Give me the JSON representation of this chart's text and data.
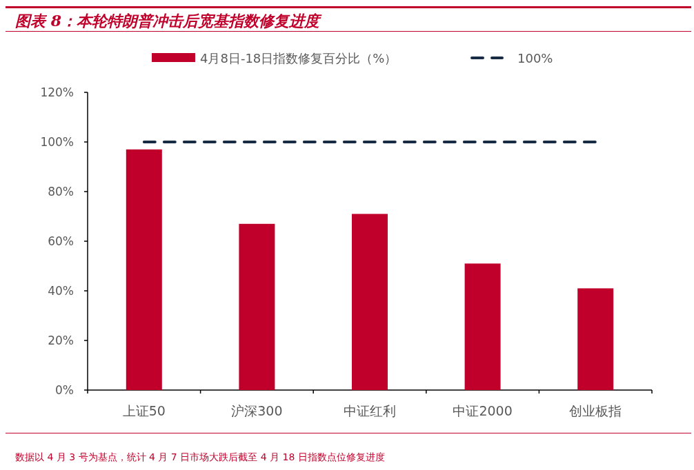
{
  "chart_data": {
    "type": "bar",
    "title": "图表 8：本轮特朗普冲击后宽基指数修复进度",
    "categories": [
      "上证50",
      "沪深300",
      "中证红利",
      "中证2000",
      "创业板指"
    ],
    "series": [
      {
        "name": "4月8日-18日指数修复百分比（%）",
        "color": "#c0002a",
        "values": [
          97,
          67,
          71,
          51,
          41
        ]
      },
      {
        "name": "100%",
        "type": "line",
        "line_style": "dashed",
        "color": "#172b44",
        "values": [
          100,
          100,
          100,
          100,
          100
        ]
      }
    ],
    "ylim": [
      0,
      120
    ],
    "yticks": [
      {
        "value": 0,
        "label": "0%"
      },
      {
        "value": 20,
        "label": "20%"
      },
      {
        "value": 40,
        "label": "40%"
      },
      {
        "value": 60,
        "label": "60%"
      },
      {
        "value": 80,
        "label": "80%"
      },
      {
        "value": 100,
        "label": "100%"
      },
      {
        "value": 120,
        "label": "120%"
      }
    ],
    "legend": "top",
    "annotations": [
      "数据以 4 月 3 号为基点，统计 4 月 7 日市场大跌后截至 4 月 18 日指数点位修复进度"
    ]
  }
}
